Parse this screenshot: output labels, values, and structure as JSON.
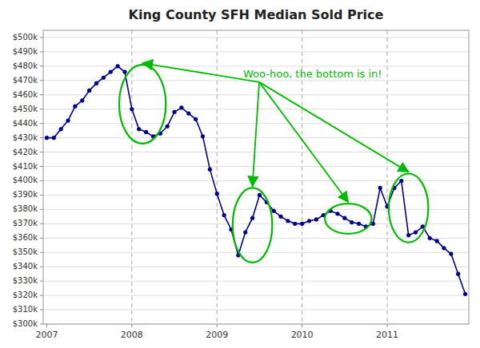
{
  "chart_data": {
    "type": "line",
    "title": "King County SFH Median Sold Price",
    "categories": [
      "2007",
      null,
      null,
      null,
      null,
      null,
      null,
      null,
      null,
      null,
      null,
      null,
      "2008",
      null,
      null,
      null,
      null,
      null,
      null,
      null,
      null,
      null,
      null,
      null,
      "2009",
      null,
      null,
      null,
      null,
      null,
      null,
      null,
      null,
      null,
      null,
      null,
      "2010",
      null,
      null,
      null,
      null,
      null,
      null,
      null,
      null,
      null,
      null,
      null,
      "2011",
      null,
      null,
      null,
      null,
      null,
      null,
      null,
      null,
      null,
      null,
      null
    ],
    "values": [
      430000,
      430000,
      436000,
      442000,
      452000,
      456000,
      463000,
      468000,
      472000,
      476000,
      480000,
      476000,
      450000,
      436000,
      434000,
      431000,
      433000,
      438000,
      448000,
      451000,
      447000,
      443000,
      431000,
      408000,
      391000,
      376000,
      366000,
      348000,
      364000,
      374000,
      390000,
      385000,
      379000,
      375000,
      372000,
      370000,
      370000,
      372000,
      373000,
      376000,
      379000,
      377000,
      374000,
      371000,
      370000,
      368000,
      370000,
      395000,
      382000,
      395000,
      400000,
      362000,
      364000,
      368000,
      360000,
      358000,
      353000,
      349000,
      335000,
      321000
    ],
    "color": "#00008B",
    "marker": "circle",
    "ylim": [
      300000,
      505000
    ],
    "yticks": [
      {
        "value": 300000,
        "label": "$300k"
      },
      {
        "value": 310000,
        "label": "$310k"
      },
      {
        "value": 320000,
        "label": "$320k"
      },
      {
        "value": 330000,
        "label": "$330k"
      },
      {
        "value": 340000,
        "label": "$340k"
      },
      {
        "value": 350000,
        "label": "$350k"
      },
      {
        "value": 360000,
        "label": "$360k"
      },
      {
        "value": 370000,
        "label": "$370k"
      },
      {
        "value": 380000,
        "label": "$380k"
      },
      {
        "value": 390000,
        "label": "$390k"
      },
      {
        "value": 400000,
        "label": "$400k"
      },
      {
        "value": 410000,
        "label": "$410k"
      },
      {
        "value": 420000,
        "label": "$420k"
      },
      {
        "value": 430000,
        "label": "$430k"
      },
      {
        "value": 440000,
        "label": "$440k"
      },
      {
        "value": 450000,
        "label": "$450k"
      },
      {
        "value": 460000,
        "label": "$460k"
      },
      {
        "value": 470000,
        "label": "$470k"
      },
      {
        "value": 480000,
        "label": "$480k"
      },
      {
        "value": 490000,
        "label": "$490k"
      },
      {
        "value": 500000,
        "label": "$500k"
      }
    ],
    "grid": true,
    "annotations": [
      {
        "text": "Woo-hoo, the bottom is in!",
        "color": "#00BB00"
      }
    ]
  }
}
